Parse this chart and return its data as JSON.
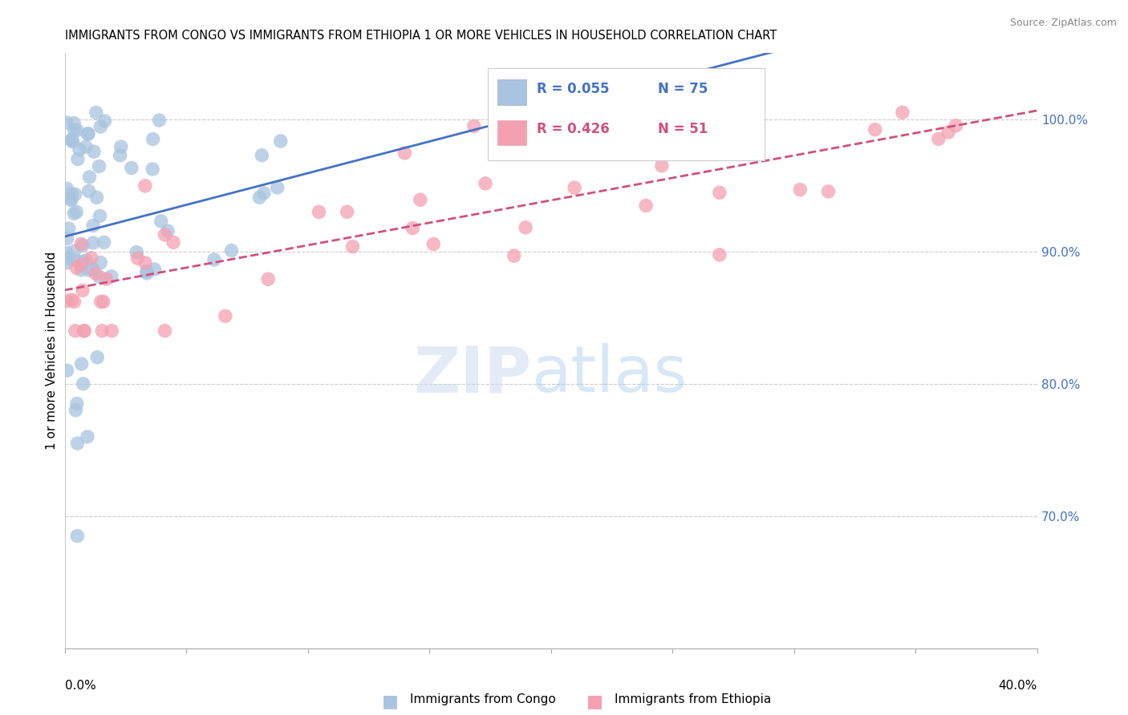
{
  "title": "IMMIGRANTS FROM CONGO VS IMMIGRANTS FROM ETHIOPIA 1 OR MORE VEHICLES IN HOUSEHOLD CORRELATION CHART",
  "source": "Source: ZipAtlas.com",
  "ylabel": "1 or more Vehicles in Household",
  "congo_color": "#a8c4e0",
  "ethiopia_color": "#f4a0b0",
  "congo_line_color": "#4472c4",
  "ethiopia_line_color": "#d05080",
  "xlim": [
    0.0,
    0.4
  ],
  "ylim": [
    0.6,
    1.05
  ],
  "ytick_vals": [
    0.7,
    0.8,
    0.9,
    1.0
  ],
  "ytick_labels": [
    "70.0%",
    "80.0%",
    "90.0%",
    "100.0%"
  ],
  "legend_r_congo": "R = 0.055",
  "legend_n_congo": "N = 75",
  "legend_r_ethiopia": "R = 0.426",
  "legend_n_ethiopia": "N = 51",
  "legend_color_r_congo": "#4472c4",
  "legend_color_r_ethiopia": "#d05080",
  "watermark_zip": "ZIP",
  "watermark_atlas": "atlas",
  "source_text": "Source: ZipAtlas.com"
}
